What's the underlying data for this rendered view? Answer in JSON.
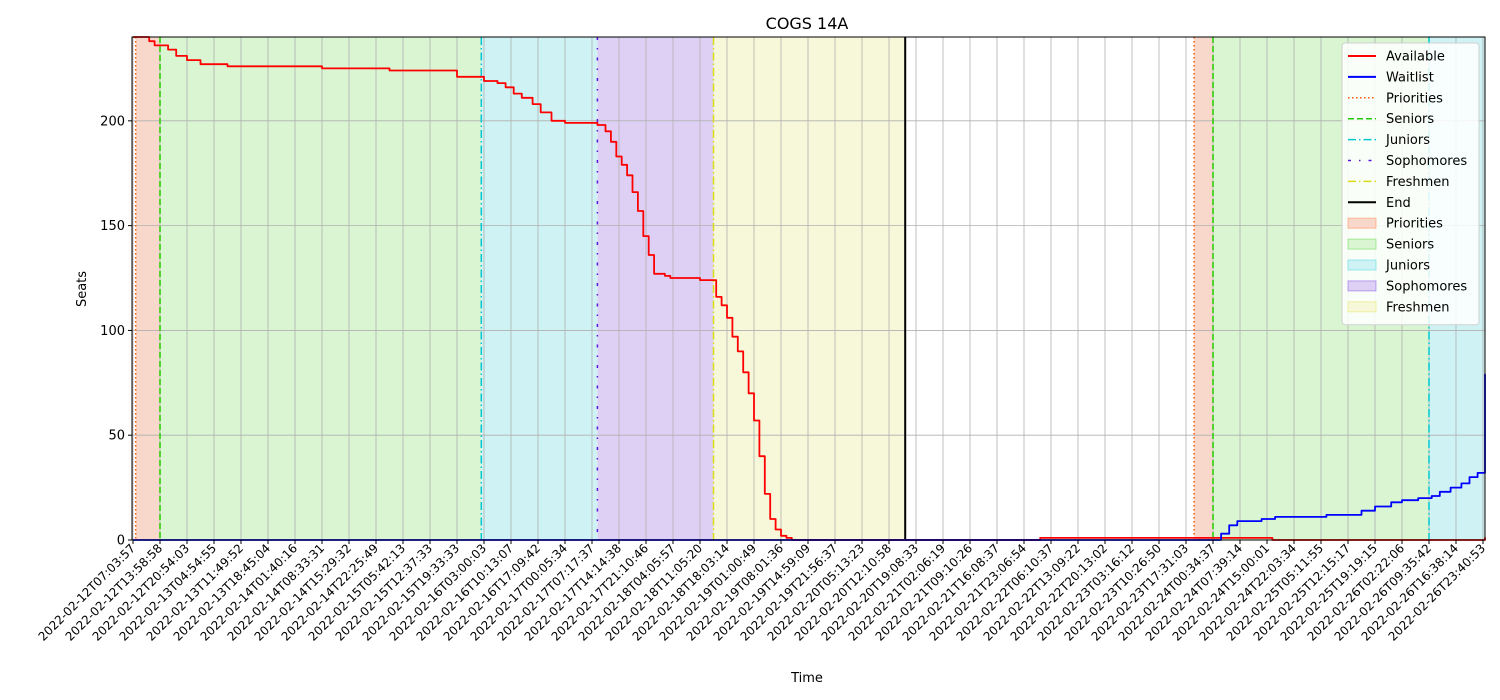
{
  "chart_data": {
    "type": "line",
    "title": "COGS 14A",
    "xlabel": "Time",
    "ylabel": "Seats",
    "ylim": [
      0,
      240
    ],
    "yticks": [
      0,
      50,
      100,
      150,
      200
    ],
    "x_ticks": [
      "2022-02-12T07:03:57",
      "2022-02-12T13:58:58",
      "2022-02-12T20:54:03",
      "2022-02-13T04:54:55",
      "2022-02-13T11:49:52",
      "2022-02-13T18:45:04",
      "2022-02-14T01:40:16",
      "2022-02-14T08:33:31",
      "2022-02-14T15:29:32",
      "2022-02-14T22:25:49",
      "2022-02-15T05:42:13",
      "2022-02-15T12:37:33",
      "2022-02-15T19:33:33",
      "2022-02-16T03:00:03",
      "2022-02-16T10:13:07",
      "2022-02-16T17:09:42",
      "2022-02-17T00:05:34",
      "2022-02-17T07:17:37",
      "2022-02-17T14:14:38",
      "2022-02-17T21:10:46",
      "2022-02-18T04:05:57",
      "2022-02-18T11:05:20",
      "2022-02-18T18:03:14",
      "2022-02-19T01:00:49",
      "2022-02-19T08:01:36",
      "2022-02-19T14:59:09",
      "2022-02-19T21:56:37",
      "2022-02-20T05:13:23",
      "2022-02-20T12:10:58",
      "2022-02-20T19:08:33",
      "2022-02-21T02:06:19",
      "2022-02-21T09:10:26",
      "2022-02-21T16:08:37",
      "2022-02-21T23:06:54",
      "2022-02-22T06:10:37",
      "2022-02-22T13:09:22",
      "2022-02-22T20:13:02",
      "2022-02-23T03:16:12",
      "2022-02-23T10:26:50",
      "2022-02-23T17:31:03",
      "2022-02-24T00:34:37",
      "2022-02-24T07:39:14",
      "2022-02-24T15:00:01",
      "2022-02-24T22:03:34",
      "2022-02-25T05:11:55",
      "2022-02-25T12:15:17",
      "2022-02-25T19:19:15",
      "2022-02-26T02:22:06",
      "2022-02-26T09:35:42",
      "2022-02-26T16:38:14",
      "2022-02-26T23:40:53"
    ],
    "colors": {
      "available": "#ff0000",
      "waitlist": "#0000ff",
      "priorities": "#ff5a00",
      "seniors": "#22cc00",
      "juniors": "#00c8d2",
      "sophomores": "#5a14dc",
      "freshmen": "#dcdc14",
      "end": "#000000",
      "priorities_fill": "#f9d8cc",
      "seniors_fill": "#d9f5d2",
      "juniors_fill": "#cff3f4",
      "sophomores_fill": "#ded0f5",
      "freshmen_fill": "#f7f8d9"
    },
    "periods": [
      {
        "phases": [
          {
            "key": "priorities",
            "start": 0.1,
            "end": 1.0
          },
          {
            "key": "seniors",
            "start": 1.0,
            "end": 12.9
          },
          {
            "key": "juniors",
            "start": 12.9,
            "end": 17.2
          },
          {
            "key": "sophomores",
            "start": 17.2,
            "end": 21.5
          },
          {
            "key": "freshmen",
            "start": 21.5,
            "end": 28.6
          }
        ],
        "end": 28.6
      },
      {
        "phases": [
          {
            "key": "priorities",
            "start": 39.3,
            "end": 40.0
          },
          {
            "key": "seniors",
            "start": 40.0,
            "end": 48.0
          },
          {
            "key": "juniors",
            "start": 48.0,
            "end": 52.4
          },
          {
            "key": "sophomores",
            "start": 52.4,
            "end": 56.7
          },
          {
            "key": "freshmen",
            "start": 56.7,
            "end": 63.7
          }
        ],
        "end": 63.7
      }
    ],
    "series": [
      {
        "name": "Available",
        "key": "available",
        "x": [
          0,
          0.4,
          0.6,
          0.8,
          1.0,
          1.3,
          1.6,
          2.0,
          2.5,
          3.5,
          5.0,
          7.0,
          9.0,
          9.5,
          10.5,
          12.0,
          12.6,
          13.0,
          13.5,
          13.8,
          14.1,
          14.4,
          14.8,
          15.1,
          15.5,
          16.0,
          17.0,
          17.2,
          17.5,
          17.7,
          17.9,
          18.1,
          18.3,
          18.5,
          18.7,
          18.9,
          19.1,
          19.3,
          19.5,
          19.7,
          19.9,
          20.2,
          21.0,
          21.5,
          21.6,
          21.8,
          22.0,
          22.2,
          22.4,
          22.6,
          22.8,
          23.0,
          23.2,
          23.4,
          23.6,
          23.8,
          24.0,
          24.2,
          24.4,
          24.6,
          28.6,
          33.5,
          33.6,
          39.0,
          39.4,
          39.8,
          40.3,
          42.0,
          42.2,
          51.5,
          51.6,
          52.0,
          52.4,
          53.4,
          53.5,
          54.5,
          54.6,
          66.6
        ],
        "y": [
          240,
          240,
          238,
          236,
          236,
          234,
          231,
          229,
          227,
          226,
          226,
          225,
          225,
          224,
          224,
          221,
          221,
          219,
          218,
          216,
          213,
          211,
          208,
          204,
          200,
          199,
          199,
          198,
          195,
          190,
          183,
          179,
          174,
          166,
          157,
          145,
          136,
          127,
          127,
          126,
          125,
          125,
          124,
          124,
          116,
          112,
          106,
          97,
          90,
          80,
          70,
          57,
          40,
          22,
          10,
          5,
          2,
          1,
          0,
          0,
          0,
          0,
          1,
          1,
          1,
          1,
          1,
          1,
          0,
          0,
          1,
          0,
          0,
          0,
          1,
          1,
          0,
          0
        ]
      },
      {
        "name": "Waitlist",
        "key": "waitlist",
        "x": [
          0,
          40.0,
          40.3,
          40.6,
          40.9,
          41.3,
          41.8,
          42.3,
          42.7,
          43.5,
          44.2,
          44.8,
          45.5,
          46.0,
          46.6,
          47.0,
          47.6,
          48.0,
          48.1,
          48.4,
          48.8,
          49.2,
          49.5,
          49.8,
          50.1,
          50.5,
          50.9,
          51.3,
          52.0,
          52.4,
          52.6,
          52.8,
          53.0,
          53.3,
          53.6,
          53.9,
          54.2,
          54.5,
          54.8,
          55.3,
          55.8,
          56.3,
          56.7,
          57.0,
          57.3,
          57.8,
          58.3,
          58.7,
          59.3,
          59.8,
          60.0,
          63.7,
          66.6
        ],
        "y": [
          0,
          0,
          3,
          7,
          9,
          9,
          10,
          11,
          11,
          11,
          12,
          12,
          14,
          16,
          18,
          19,
          20,
          20,
          21,
          23,
          25,
          27,
          30,
          32,
          35,
          38,
          42,
          44,
          44,
          44,
          47,
          50,
          53,
          56,
          59,
          61,
          63,
          65,
          66,
          66,
          67,
          67,
          67,
          70,
          72,
          73,
          75,
          77,
          79,
          79,
          78,
          78,
          78
        ]
      }
    ],
    "legend": {
      "position": "top-right",
      "entries": [
        {
          "label": "Available",
          "kind": "line",
          "key": "available",
          "dash": "solid"
        },
        {
          "label": "Waitlist",
          "kind": "line",
          "key": "waitlist",
          "dash": "solid"
        },
        {
          "label": "Priorities",
          "kind": "line",
          "key": "priorities",
          "dash": "dotted"
        },
        {
          "label": "Seniors",
          "kind": "line",
          "key": "seniors",
          "dash": "dashed"
        },
        {
          "label": "Juniors",
          "kind": "line",
          "key": "juniors",
          "dash": "dashdot"
        },
        {
          "label": "Sophomores",
          "kind": "line",
          "key": "sophomores",
          "dash": "loosedashdot"
        },
        {
          "label": "Freshmen",
          "kind": "line",
          "key": "freshmen",
          "dash": "dashdot"
        },
        {
          "label": "End",
          "kind": "line",
          "key": "end",
          "dash": "solid"
        },
        {
          "label": "Priorities",
          "kind": "patch",
          "key": "priorities"
        },
        {
          "label": "Seniors",
          "kind": "patch",
          "key": "seniors"
        },
        {
          "label": "Juniors",
          "kind": "patch",
          "key": "juniors"
        },
        {
          "label": "Sophomores",
          "kind": "patch",
          "key": "sophomores"
        },
        {
          "label": "Freshmen",
          "kind": "patch",
          "key": "freshmen"
        }
      ]
    },
    "grid": true
  }
}
